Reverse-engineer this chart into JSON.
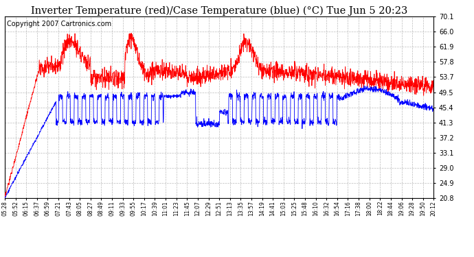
{
  "title": "Inverter Temperature (red)/Case Temperature (blue) (°C) Tue Jun 5 20:23",
  "copyright": "Copyright 2007 Cartronics.com",
  "y_ticks": [
    20.8,
    24.9,
    29.0,
    33.1,
    37.2,
    41.3,
    45.4,
    49.5,
    53.7,
    57.8,
    61.9,
    66.0,
    70.1
  ],
  "ylim": [
    20.8,
    70.1
  ],
  "x_labels": [
    "05:28",
    "05:52",
    "06:15",
    "06:37",
    "06:59",
    "07:21",
    "07:43",
    "08:05",
    "08:27",
    "08:49",
    "09:11",
    "09:33",
    "09:55",
    "10:17",
    "10:39",
    "11:01",
    "11:23",
    "11:45",
    "12:07",
    "12:29",
    "12:51",
    "13:13",
    "13:35",
    "13:57",
    "14:19",
    "14:41",
    "15:03",
    "15:25",
    "15:48",
    "16:10",
    "16:32",
    "16:54",
    "17:16",
    "17:38",
    "18:00",
    "18:22",
    "18:44",
    "19:06",
    "19:28",
    "19:50",
    "20:12"
  ],
  "red_color": "#ff0000",
  "blue_color": "#0000ff",
  "bg_color": "#ffffff",
  "grid_color": "#bbbbbb",
  "title_fontsize": 10.5,
  "copyright_fontsize": 7
}
